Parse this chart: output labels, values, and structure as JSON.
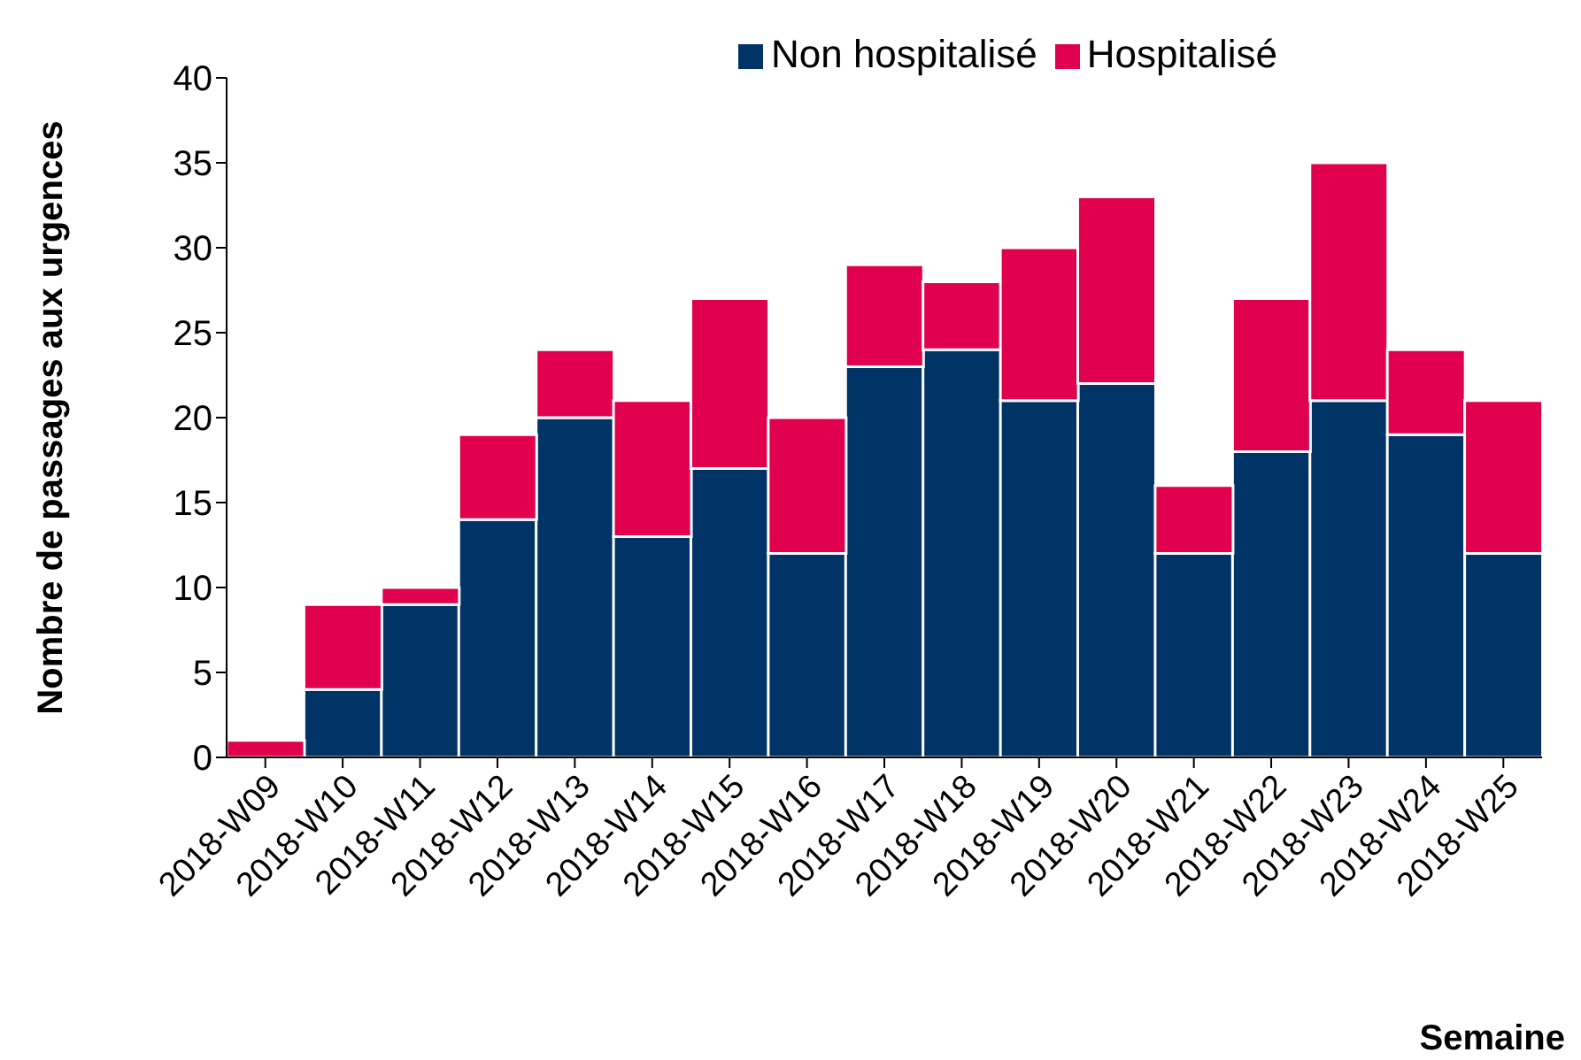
{
  "chart_data": {
    "type": "bar",
    "stacked": true,
    "xlabel": "Semaine",
    "ylabel": "Nombre de passages aux urgences",
    "categories": [
      "2018-W09",
      "2018-W10",
      "2018-W11",
      "2018-W12",
      "2018-W13",
      "2018-W14",
      "2018-W15",
      "2018-W16",
      "2018-W17",
      "2018-W18",
      "2018-W19",
      "2018-W20",
      "2018-W21",
      "2018-W22",
      "2018-W23",
      "2018-W24",
      "2018-W25"
    ],
    "series": [
      {
        "name": "Non hospitalisé",
        "color": "#003366",
        "values": [
          0,
          4,
          9,
          14,
          20,
          13,
          17,
          12,
          23,
          24,
          21,
          22,
          12,
          18,
          21,
          19,
          12
        ]
      },
      {
        "name": "Hospitalisé",
        "color": "#e0004d",
        "values": [
          1,
          5,
          1,
          5,
          4,
          8,
          10,
          8,
          6,
          4,
          9,
          11,
          4,
          9,
          14,
          5,
          9
        ]
      }
    ],
    "ylim": [
      0,
      40
    ],
    "yticks": [
      0,
      5,
      10,
      15,
      20,
      25,
      30,
      35,
      40
    ],
    "grid": false,
    "legend": "top"
  }
}
